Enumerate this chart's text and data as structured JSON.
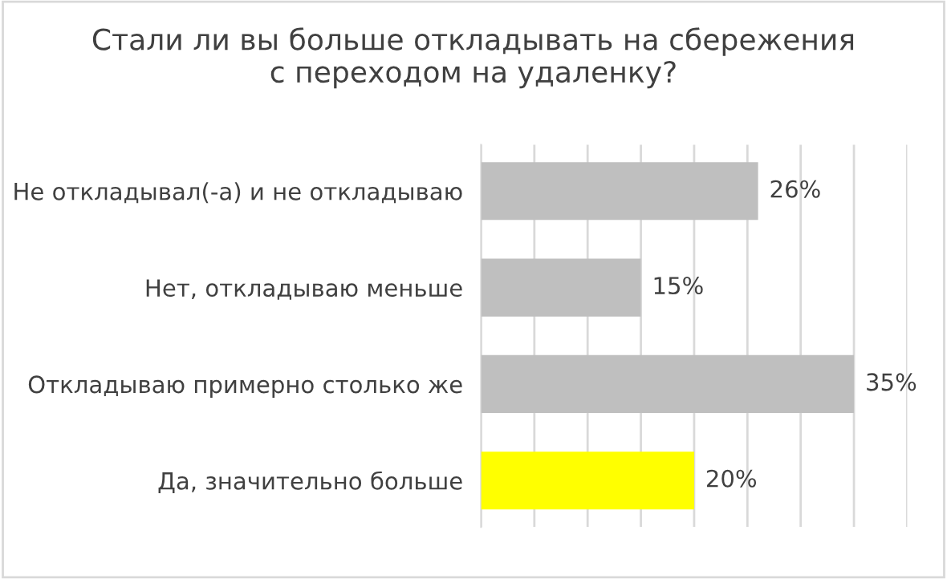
{
  "chart_data": {
    "type": "bar",
    "orientation": "horizontal",
    "title": "Стали ли вы больше откладывать на сбережения\nс переходом на удаленку?",
    "categories": [
      "Не откладывал(-а) и не откладываю",
      "Нет, откладываю меньше",
      "Откладываю примерно столько же",
      "Да, значительно больше"
    ],
    "values": [
      26,
      15,
      35,
      20
    ],
    "colors": [
      "#bfbfbf",
      "#bfbfbf",
      "#bfbfbf",
      "#ffff00"
    ],
    "value_labels": [
      "26%",
      "15%",
      "35%",
      "20%"
    ],
    "xlim": [
      0,
      40
    ],
    "xticks": [
      {
        "value": 0,
        "label": null
      },
      {
        "value": 5,
        "label": null
      },
      {
        "value": 10,
        "label": null
      },
      {
        "value": 15,
        "label": null
      },
      {
        "value": 20,
        "label": null
      },
      {
        "value": 25,
        "label": null
      },
      {
        "value": 30,
        "label": null
      },
      {
        "value": 35,
        "label": null
      },
      {
        "value": 40,
        "label": null
      }
    ],
    "grid": "x",
    "legend": false
  }
}
